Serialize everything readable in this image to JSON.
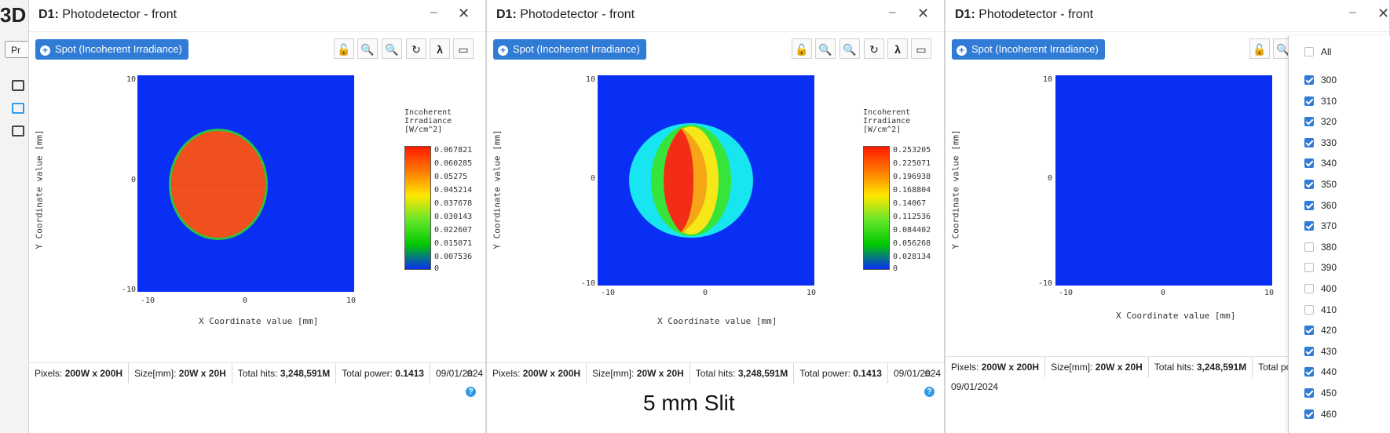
{
  "app": {
    "logo_text": "3D",
    "pr_button": "Pr"
  },
  "windows": [
    {
      "title_bold": "D1:",
      "title_rest": " Photodetector - front",
      "spot_label": "Spot (Incoherent Irradiance)",
      "ylabel": "Y Coordinate value [mm]",
      "xlabel": "X Coordinate value [mm]",
      "xticks": [
        "-10",
        "0",
        "10"
      ],
      "yticks": [
        "10",
        "0",
        "-10"
      ],
      "colorbar_title": [
        "Incoherent",
        "Irradiance",
        "[W/cm^2]"
      ],
      "colorbar_labels": [
        "0.067821",
        "0.060285",
        "0.05275",
        "0.045214",
        "0.037678",
        "0.030143",
        "0.022607",
        "0.015071",
        "0.007536",
        "0"
      ],
      "status": {
        "pixels_label": "Pixels:",
        "pixels": "200W x 200H",
        "size_label": "Size[mm]:",
        "size": "20W x 20H",
        "hits_label": "Total hits:",
        "hits": "3,248,591M",
        "power_label": "Total power:",
        "power": "0.1413",
        "date": "09/01/2024"
      }
    },
    {
      "title_bold": "D1:",
      "title_rest": " Photodetector - front",
      "spot_label": "Spot (Incoherent Irradiance)",
      "ylabel": "Y Coordinate value [mm]",
      "xlabel": "X Coordinate value [mm]",
      "xticks": [
        "-10",
        "0",
        "10"
      ],
      "yticks": [
        "10",
        "0",
        "-10"
      ],
      "colorbar_title": [
        "Incoherent",
        "Irradiance",
        "[W/cm^2]"
      ],
      "colorbar_labels": [
        "0.253205",
        "0.225071",
        "0.196938",
        "0.168804",
        "0.14067",
        "0.112536",
        "0.084402",
        "0.056268",
        "0.028134",
        "0"
      ],
      "status": {
        "pixels_label": "Pixels:",
        "pixels": "200W x 200H",
        "size_label": "Size[mm]:",
        "size": "20W x 20H",
        "hits_label": "Total hits:",
        "hits": "3,248,591M",
        "power_label": "Total power:",
        "power": "0.1413",
        "date": "09/01/2024"
      }
    },
    {
      "title_bold": "D1:",
      "title_rest": " Photodetector - front",
      "spot_label": "Spot (Incoherent Irradiance)",
      "ylabel": "Y Coordinate value [mm]",
      "xlabel": "X Coordinate value [mm]",
      "xticks": [
        "-10",
        "0",
        "10"
      ],
      "yticks": [
        "10",
        "0",
        "-10"
      ],
      "status": {
        "pixels_label": "Pixels:",
        "pixels": "200W x 200H",
        "size_label": "Size[mm]:",
        "size": "20W x 20H",
        "hits_label": "Total hits:",
        "hits": "3,248,591M",
        "power_label": "Total power:",
        "date": "09/01/2024"
      }
    }
  ],
  "caption": "5 mm Slit",
  "wavelength_panel": {
    "all_label": "All",
    "items": [
      {
        "label": "300",
        "checked": true
      },
      {
        "label": "310",
        "checked": true
      },
      {
        "label": "320",
        "checked": true
      },
      {
        "label": "330",
        "checked": true
      },
      {
        "label": "340",
        "checked": true
      },
      {
        "label": "350",
        "checked": true
      },
      {
        "label": "360",
        "checked": true
      },
      {
        "label": "370",
        "checked": true
      },
      {
        "label": "380",
        "checked": false
      },
      {
        "label": "390",
        "checked": false
      },
      {
        "label": "400",
        "checked": false
      },
      {
        "label": "410",
        "checked": false
      },
      {
        "label": "420",
        "checked": true
      },
      {
        "label": "430",
        "checked": true
      },
      {
        "label": "440",
        "checked": true
      },
      {
        "label": "450",
        "checked": true
      },
      {
        "label": "460",
        "checked": true
      }
    ]
  },
  "colors": {
    "accent": "#2f7bd6",
    "background_field": "#0a2ff4"
  }
}
